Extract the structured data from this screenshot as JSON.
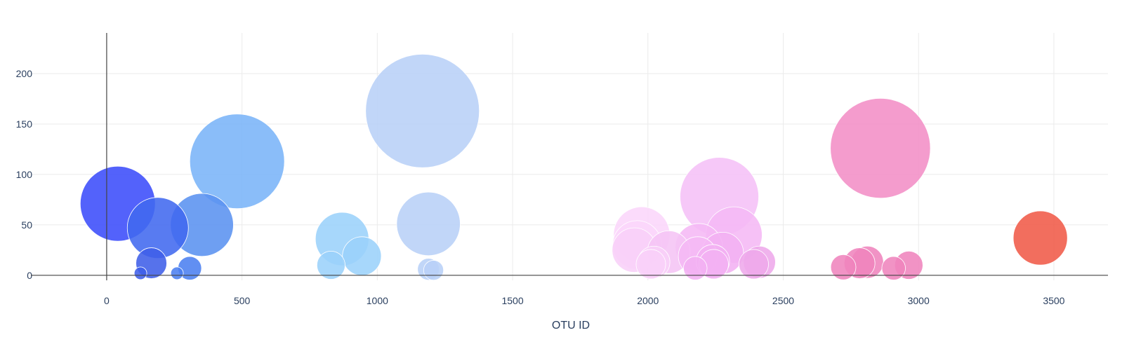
{
  "chart_data": {
    "type": "scatter",
    "xlabel": "OTU ID",
    "ylabel": "",
    "xlim": [
      -280,
      3700
    ],
    "ylim": [
      -5,
      248
    ],
    "x_ticks": [
      0,
      500,
      1000,
      1500,
      2000,
      2500,
      3000,
      3500
    ],
    "y_ticks": [
      0,
      50,
      100,
      150,
      200
    ],
    "grid": true,
    "series": [
      {
        "marker_size": "proportional to y value",
        "points": [
          {
            "x": 41,
            "y": 71,
            "color": "#3b4cfa"
          },
          {
            "x": 189,
            "y": 47,
            "color": "#4169ef"
          },
          {
            "x": 352,
            "y": 50,
            "color": "#5a92f0"
          },
          {
            "x": 482,
            "y": 113,
            "color": "#7ab4f8"
          },
          {
            "x": 165,
            "y": 12,
            "color": "#3f5fe8"
          },
          {
            "x": 307,
            "y": 7,
            "color": "#4b7ff0"
          },
          {
            "x": 125,
            "y": 2,
            "color": "#3f5fe8"
          },
          {
            "x": 260,
            "y": 2,
            "color": "#4b7ff0"
          },
          {
            "x": 870,
            "y": 36,
            "color": "#9bd2fb"
          },
          {
            "x": 943,
            "y": 19,
            "color": "#9bd2fb"
          },
          {
            "x": 829,
            "y": 10,
            "color": "#9bd2fb"
          },
          {
            "x": 1167,
            "y": 163,
            "color": "#b8d0f7"
          },
          {
            "x": 1189,
            "y": 51,
            "color": "#b8d0f7"
          },
          {
            "x": 1189,
            "y": 6,
            "color": "#b8d0f7"
          },
          {
            "x": 1208,
            "y": 5,
            "color": "#b8d0f7"
          },
          {
            "x": 1977,
            "y": 40,
            "color": "#fbd6fb"
          },
          {
            "x": 1960,
            "y": 30,
            "color": "#fbd6fb"
          },
          {
            "x": 1950,
            "y": 25,
            "color": "#f8d0f8"
          },
          {
            "x": 2077,
            "y": 23,
            "color": "#f5c4f5"
          },
          {
            "x": 2022,
            "y": 13,
            "color": "#f8d0f8"
          },
          {
            "x": 2011,
            "y": 11,
            "color": "#f8d0f8"
          },
          {
            "x": 2264,
            "y": 78,
            "color": "#f5c0f7"
          },
          {
            "x": 2318,
            "y": 40,
            "color": "#f5b8f5"
          },
          {
            "x": 2188,
            "y": 28,
            "color": "#f5b8f5"
          },
          {
            "x": 2276,
            "y": 22,
            "color": "#f2b0f2"
          },
          {
            "x": 2184,
            "y": 19,
            "color": "#f5b8f5"
          },
          {
            "x": 2240,
            "y": 14,
            "color": "#f2b0f2"
          },
          {
            "x": 2243,
            "y": 11,
            "color": "#f2b0f2"
          },
          {
            "x": 2175,
            "y": 7,
            "color": "#f2b0f2"
          },
          {
            "x": 2412,
            "y": 13,
            "color": "#eea8ea"
          },
          {
            "x": 2391,
            "y": 11,
            "color": "#eea8ea"
          },
          {
            "x": 2859,
            "y": 126,
            "color": "#f28ec6"
          },
          {
            "x": 2811,
            "y": 13,
            "color": "#ef84bd"
          },
          {
            "x": 2782,
            "y": 12,
            "color": "#ef84bd"
          },
          {
            "x": 2964,
            "y": 10,
            "color": "#ef84bd"
          },
          {
            "x": 2722,
            "y": 8,
            "color": "#ef84bd"
          },
          {
            "x": 2908,
            "y": 7,
            "color": "#ef84bd"
          },
          {
            "x": 3450,
            "y": 37,
            "color": "#f05a48"
          }
        ]
      }
    ]
  }
}
